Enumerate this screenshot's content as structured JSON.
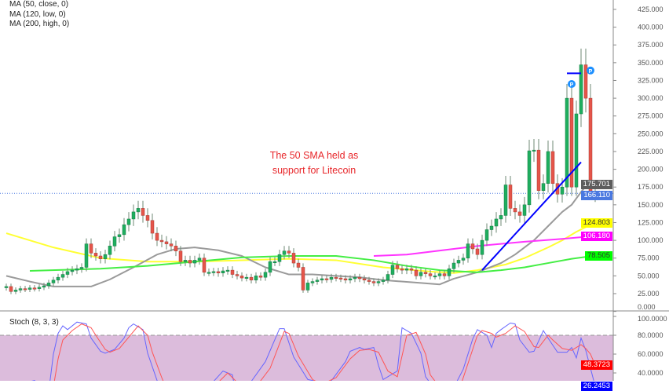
{
  "legend": {
    "ma1": "MA (50, close, 0)",
    "ma2": "MA (120, low, 0)",
    "ma3": "MA (200, high, 0)"
  },
  "annotation": {
    "line1": "The 50 SMA held as",
    "line2": "support for Litecoin"
  },
  "stoch_title": "Stoch (8, 3, 3)",
  "price_labels": [
    {
      "text": "175.701",
      "value": 175.701,
      "bg": "#5d5d5d",
      "fg": "#ffffff"
    },
    {
      "text": "166.110",
      "value": 166.11,
      "bg": "#4a78e0",
      "fg": "#ffffff"
    },
    {
      "text": "124.803",
      "value": 124.803,
      "bg": "#ffff00",
      "fg": "#333333"
    },
    {
      "text": "106.180",
      "value": 106.18,
      "bg": "#ff00ff",
      "fg": "#ffffff"
    },
    {
      "text": "78.505",
      "value": 78.505,
      "bg": "#00ff00",
      "fg": "#333333"
    }
  ],
  "stoch_labels": [
    {
      "text": "48.3723",
      "value": 48.3723,
      "bg": "#ff0000",
      "fg": "#ffffff"
    },
    {
      "text": "26.2453",
      "value": 26.2453,
      "bg": "#0000ff",
      "fg": "#ffffff"
    }
  ],
  "markers": [
    {
      "text": "P"
    },
    {
      "text": "P"
    }
  ],
  "chart_data": [
    {
      "type": "candlestick",
      "ylim": [
        0,
        437
      ],
      "yticks": [
        "0.000",
        "25.000",
        "50.000",
        "75.000",
        "100.000",
        "125.000",
        "150.000",
        "175.000",
        "200.000",
        "225.000",
        "250.000",
        "275.000",
        "300.000",
        "325.000",
        "350.000",
        "375.000",
        "400.000",
        "425.000"
      ],
      "last_price": 166.11,
      "colors": {
        "up": "#1fae5f",
        "down": "#e5554a",
        "wick": "#6f8a76"
      },
      "closes": [
        35,
        28,
        30,
        32,
        31,
        33,
        32,
        34,
        36,
        40,
        44,
        48,
        52,
        56,
        58,
        60,
        62,
        95,
        82,
        78,
        74,
        80,
        92,
        105,
        108,
        122,
        130,
        140,
        145,
        135,
        128,
        110,
        100,
        98,
        95,
        92,
        85,
        70,
        72,
        68,
        72,
        75,
        55,
        55,
        56,
        54,
        57,
        58,
        52,
        50,
        47,
        48,
        44,
        50,
        48,
        55,
        70,
        70,
        80,
        85,
        82,
        68,
        62,
        30,
        40,
        42,
        44,
        46,
        45,
        48,
        47,
        46,
        44,
        46,
        48,
        46,
        44,
        42,
        40,
        42,
        44,
        52,
        65,
        60,
        58,
        60,
        58,
        50,
        55,
        53,
        50,
        50,
        53,
        50,
        60,
        68,
        72,
        75,
        95,
        88,
        80,
        100,
        115,
        120,
        130,
        135,
        178,
        145,
        140,
        135,
        150,
        226,
        227,
        170,
        180,
        225,
        180,
        165,
        175,
        300,
        175,
        278,
        347,
        300,
        169,
        166
      ],
      "series": [
        {
          "name": "MA (50, close, 0)",
          "color": "#ffff33",
          "points": [
            [
              0,
              110
            ],
            [
              10,
              90
            ],
            [
              20,
              75
            ],
            [
              30,
              70
            ],
            [
              40,
              70
            ],
            [
              50,
              72
            ],
            [
              60,
              74
            ],
            [
              70,
              72
            ],
            [
              80,
              62
            ],
            [
              90,
              56
            ],
            [
              95,
              54
            ],
            [
              100,
              58
            ],
            [
              106,
              66
            ],
            [
              110,
              75
            ],
            [
              115,
              90
            ],
            [
              118,
              100
            ],
            [
              121,
              112
            ],
            [
              124,
              122
            ],
            [
              125,
              124.8
            ]
          ]
        },
        {
          "name": "MA (120, low, 0)",
          "color": "#9a9a9a",
          "points": [
            [
              0,
              50
            ],
            [
              5,
              42
            ],
            [
              10,
              35
            ],
            [
              18,
              35
            ],
            [
              22,
              45
            ],
            [
              27,
              62
            ],
            [
              32,
              80
            ],
            [
              36,
              88
            ],
            [
              40,
              90
            ],
            [
              45,
              86
            ],
            [
              50,
              78
            ],
            [
              55,
              62
            ],
            [
              60,
              52
            ],
            [
              65,
              52
            ],
            [
              70,
              50
            ],
            [
              75,
              48
            ],
            [
              80,
              44
            ],
            [
              88,
              40
            ],
            [
              92,
              38
            ],
            [
              95,
              46
            ],
            [
              100,
              55
            ],
            [
              105,
              68
            ],
            [
              108,
              80
            ],
            [
              112,
              100
            ],
            [
              115,
              120
            ],
            [
              118,
              140
            ],
            [
              120,
              150
            ],
            [
              122,
              168
            ],
            [
              123,
              176
            ],
            [
              125,
              175.7
            ]
          ]
        },
        {
          "name": "MA (200, high, 0)",
          "color": "#44ee44",
          "points": [
            [
              5,
              57
            ],
            [
              20,
              60
            ],
            [
              30,
              64
            ],
            [
              40,
              70
            ],
            [
              50,
              76
            ],
            [
              60,
              78
            ],
            [
              70,
              78
            ],
            [
              78,
              72
            ],
            [
              85,
              64
            ],
            [
              92,
              58
            ],
            [
              100,
              55
            ],
            [
              105,
              58
            ],
            [
              110,
              62
            ],
            [
              115,
              68
            ],
            [
              120,
              74
            ],
            [
              125,
              78.5
            ]
          ]
        },
        {
          "color": "#ff33ff",
          "points": [
            [
              78,
              78
            ],
            [
              85,
              80
            ],
            [
              95,
              88
            ],
            [
              100,
              92
            ],
            [
              110,
              98
            ],
            [
              118,
              102
            ],
            [
              125,
              106.2
            ]
          ]
        }
      ]
    },
    {
      "type": "line",
      "title": "Stoch (8, 3, 3)",
      "ylim": [
        0,
        100
      ],
      "yticks": [
        "100.0000",
        "80.0000",
        "60.0000",
        "40.0000"
      ],
      "band": [
        0,
        80
      ],
      "series": [
        {
          "color": "#6666ff",
          "points": [
            [
              0,
              25
            ],
            [
              6,
              32
            ],
            [
              9,
              20
            ],
            [
              10,
              60
            ],
            [
              11,
              82
            ],
            [
              12,
              90
            ],
            [
              13,
              86
            ],
            [
              15,
              94
            ],
            [
              17,
              92
            ],
            [
              18,
              77
            ],
            [
              20,
              63
            ],
            [
              21,
              61
            ],
            [
              23,
              65
            ],
            [
              25,
              77
            ],
            [
              26,
              88
            ],
            [
              27,
              92
            ],
            [
              29,
              86
            ],
            [
              30,
              61
            ],
            [
              32,
              32
            ],
            [
              34,
              10
            ],
            [
              37,
              5
            ],
            [
              42,
              20
            ],
            [
              46,
              42
            ],
            [
              48,
              38
            ],
            [
              49,
              10
            ],
            [
              55,
              52
            ],
            [
              58,
              87
            ],
            [
              59,
              87
            ],
            [
              61,
              57
            ],
            [
              64,
              33
            ],
            [
              65,
              32
            ],
            [
              68,
              25
            ],
            [
              72,
              52
            ],
            [
              73,
              63
            ],
            [
              75,
              67
            ],
            [
              76,
              65
            ],
            [
              78,
              67
            ],
            [
              79,
              48
            ],
            [
              80,
              33
            ],
            [
              83,
              42
            ],
            [
              84,
              88
            ],
            [
              86,
              82
            ],
            [
              88,
              61
            ],
            [
              89,
              36
            ],
            [
              92,
              15
            ],
            [
              94,
              15
            ],
            [
              97,
              44
            ],
            [
              99,
              76
            ],
            [
              100,
              86
            ],
            [
              102,
              80
            ],
            [
              103,
              67
            ],
            [
              104,
              82
            ],
            [
              105,
              86
            ],
            [
              107,
              93
            ],
            [
              108,
              92
            ],
            [
              109,
              75
            ],
            [
              111,
              62
            ],
            [
              112,
              63
            ],
            [
              114,
              85
            ],
            [
              115,
              77
            ],
            [
              117,
              62
            ],
            [
              119,
              62
            ],
            [
              120,
              67
            ],
            [
              121,
              56
            ],
            [
              122,
              77
            ],
            [
              123,
              64
            ],
            [
              124,
              45
            ],
            [
              125,
              26
            ]
          ]
        },
        {
          "color": "#ff5555",
          "points": [
            [
              0,
              18
            ],
            [
              7,
              30
            ],
            [
              10,
              25
            ],
            [
              11,
              55
            ],
            [
              12,
              75
            ],
            [
              14,
              85
            ],
            [
              16,
              92
            ],
            [
              18,
              88
            ],
            [
              19,
              80
            ],
            [
              21,
              65
            ],
            [
              22,
              62
            ],
            [
              24,
              66
            ],
            [
              26,
              78
            ],
            [
              28,
              90
            ],
            [
              30,
              80
            ],
            [
              31,
              62
            ],
            [
              33,
              35
            ],
            [
              35,
              12
            ],
            [
              40,
              8
            ],
            [
              44,
              25
            ],
            [
              47,
              40
            ],
            [
              49,
              30
            ],
            [
              51,
              12
            ],
            [
              56,
              45
            ],
            [
              59,
              84
            ],
            [
              60,
              82
            ],
            [
              62,
              58
            ],
            [
              65,
              33
            ],
            [
              67,
              28
            ],
            [
              70,
              35
            ],
            [
              73,
              55
            ],
            [
              75,
              64
            ],
            [
              77,
              65
            ],
            [
              79,
              62
            ],
            [
              81,
              42
            ],
            [
              83,
              36
            ],
            [
              85,
              80
            ],
            [
              87,
              83
            ],
            [
              89,
              60
            ],
            [
              90,
              38
            ],
            [
              93,
              18
            ],
            [
              96,
              20
            ],
            [
              98,
              50
            ],
            [
              100,
              80
            ],
            [
              101,
              85
            ],
            [
              103,
              82
            ],
            [
              104,
              78
            ],
            [
              106,
              82
            ],
            [
              108,
              90
            ],
            [
              110,
              84
            ],
            [
              112,
              68
            ],
            [
              113,
              67
            ],
            [
              115,
              80
            ],
            [
              116,
              75
            ],
            [
              118,
              66
            ],
            [
              120,
              64
            ],
            [
              122,
              70
            ],
            [
              123,
              66
            ],
            [
              124,
              60
            ],
            [
              125,
              48.4
            ]
          ]
        }
      ]
    }
  ],
  "drawings": {
    "trendline": [
      [
        101,
        58
      ],
      [
        122,
        210
      ]
    ],
    "top_line": [
      [
        119,
        335
      ],
      [
        122,
        335
      ]
    ],
    "marker_points": [
      [
        120,
        320
      ],
      [
        124,
        339
      ]
    ]
  }
}
